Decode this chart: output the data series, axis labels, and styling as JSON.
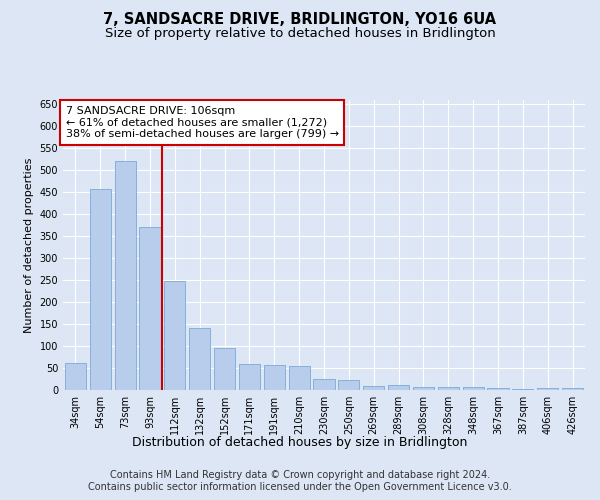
{
  "title": "7, SANDSACRE DRIVE, BRIDLINGTON, YO16 6UA",
  "subtitle": "Size of property relative to detached houses in Bridlington",
  "xlabel": "Distribution of detached houses by size in Bridlington",
  "ylabel": "Number of detached properties",
  "categories": [
    "34sqm",
    "54sqm",
    "73sqm",
    "93sqm",
    "112sqm",
    "132sqm",
    "152sqm",
    "171sqm",
    "191sqm",
    "210sqm",
    "230sqm",
    "250sqm",
    "269sqm",
    "289sqm",
    "308sqm",
    "328sqm",
    "348sqm",
    "367sqm",
    "387sqm",
    "406sqm",
    "426sqm"
  ],
  "values": [
    62,
    457,
    522,
    370,
    248,
    140,
    95,
    60,
    57,
    55,
    25,
    22,
    10,
    12,
    7,
    6,
    7,
    4,
    3,
    5,
    4
  ],
  "bar_color": "#b8cceb",
  "bar_edge_color": "#7aaad4",
  "background_color": "#dce6f5",
  "grid_color": "#ffffff",
  "vline_index": 4,
  "vline_color": "#cc0000",
  "annotation_text": "7 SANDSACRE DRIVE: 106sqm\n← 61% of detached houses are smaller (1,272)\n38% of semi-detached houses are larger (799) →",
  "annotation_box_facecolor": "#ffffff",
  "annotation_box_edgecolor": "#cc0000",
  "ylim": [
    0,
    660
  ],
  "yticks": [
    0,
    50,
    100,
    150,
    200,
    250,
    300,
    350,
    400,
    450,
    500,
    550,
    600,
    650
  ],
  "footer_line1": "Contains HM Land Registry data © Crown copyright and database right 2024.",
  "footer_line2": "Contains public sector information licensed under the Open Government Licence v3.0.",
  "title_fontsize": 10.5,
  "subtitle_fontsize": 9.5,
  "tick_fontsize": 7,
  "ylabel_fontsize": 8,
  "xlabel_fontsize": 9,
  "annotation_fontsize": 8,
  "footer_fontsize": 7
}
